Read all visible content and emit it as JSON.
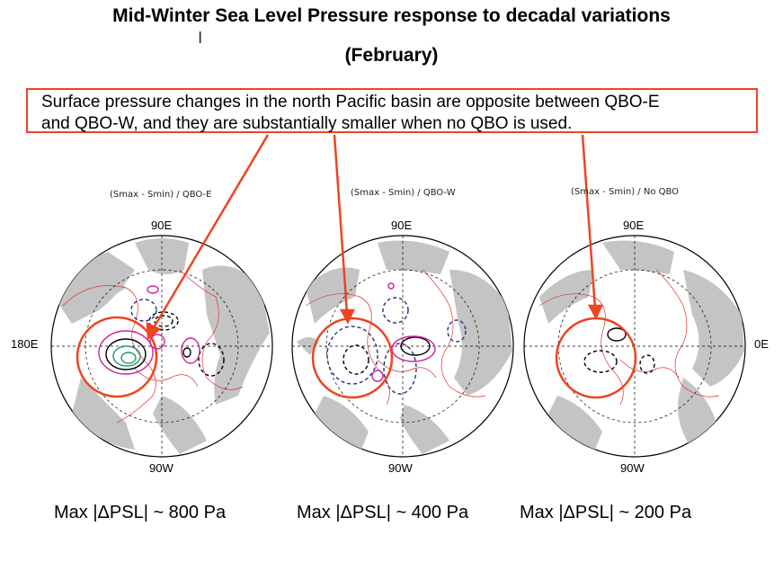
{
  "slide": {
    "title_line1": "Mid-Winter Sea Level Pressure response to decadal  variations",
    "title_line2": "(February)",
    "callout_line1": "Surface pressure changes in the north Pacific basin are opposite between QBO-E",
    "callout_line2": "and QBO-W, and they are substantially smaller when no QBO is used."
  },
  "panels": [
    {
      "title": "(Smax - Smin) / QBO-E",
      "top_label": "90E",
      "bottom_label": "90W",
      "left_label": "180E",
      "caption": "Max |ΔPSL| ~ 800 Pa"
    },
    {
      "title": "(Smax - Smin) / QBO-W",
      "top_label": "90E",
      "bottom_label": "90W",
      "caption": "Max |ΔPSL| ~ 400 Pa"
    },
    {
      "title": "(Smax - Smin) / No QBO",
      "top_label": "90E",
      "bottom_label": "90W",
      "right_label": "0E",
      "caption": "Max |ΔPSL| ~ 200 Pa"
    }
  ],
  "colors": {
    "highlight": "#ee4422",
    "land": "#c4c4c4",
    "coast": "#dd3333",
    "positive_contour": "#cc2299",
    "negative_contour": "#223377",
    "strong_contour": "#229966"
  }
}
